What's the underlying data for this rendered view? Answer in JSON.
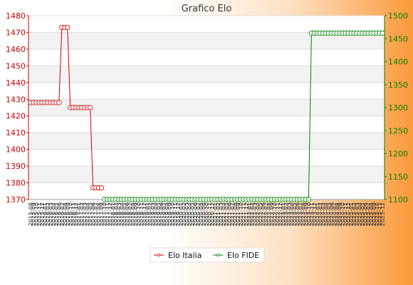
{
  "chart_data": {
    "type": "line",
    "title": "Grafico Elo",
    "xlabel": "",
    "ylabel": "",
    "grid": true,
    "legend_position": "bottom",
    "left_axis": {
      "ylim": [
        1370,
        1480
      ],
      "ticks": [
        1370,
        1380,
        1390,
        1400,
        1410,
        1420,
        1430,
        1440,
        1450,
        1460,
        1470,
        1480
      ],
      "color": "#cc0000"
    },
    "right_axis": {
      "ylim": [
        1100,
        1500
      ],
      "ticks": [
        1100,
        1150,
        1200,
        1250,
        1300,
        1350,
        1400,
        1450,
        1500
      ],
      "color": "#008000"
    },
    "x_tick_labels": [
      "2015-08",
      "2015-09",
      "2015-10",
      "2015-11",
      "2015-12",
      "2016-01",
      "2016-02",
      "2016-03",
      "2016-04",
      "2016-05",
      "2016-06",
      "2016-07",
      "2016-08",
      "2016-09",
      "2016-10",
      "2016-11",
      "2016-12",
      "2017-01",
      "2017-02",
      "2017-03",
      "2017-04",
      "2017-05",
      "2017-06",
      "2017-07",
      "2017-08",
      "2017-09",
      "2017-10",
      "2017-11",
      "2017-12",
      "2018-01",
      "2018-02",
      "2018-03",
      "2018-04",
      "2018-05",
      "2018-06",
      "2018-07",
      "2018-08",
      "2018-09",
      "2018-10",
      "2018-11",
      "2018-12",
      "2019-01",
      "2019-02",
      "2019-03",
      "2019-04",
      "2019-05",
      "2019-06",
      "2019-07",
      "2019-08",
      "2019-09",
      "2019-10",
      "2019-11",
      "2019-12",
      "2020-01",
      "2020-02",
      "2020-03",
      "2020-04",
      "2020-05",
      "2020-06",
      "2020-07",
      "2020-08",
      "2020-09",
      "2020-10",
      "2020-11",
      "2020-12",
      "2021-01",
      "2021-02",
      "2021-03",
      "2021-04",
      "2021-05",
      "2021-06",
      "2021-07",
      "2021-08",
      "2021-09",
      "2021-10",
      "2021-11",
      "2021-12",
      "2022-01",
      "2022-02",
      "2022-03",
      "2022-04",
      "2022-05",
      "2022-06",
      "2022-07",
      "2022-08",
      "2022-09",
      "2022-10",
      "2022-11",
      "2022-12",
      "2023-01",
      "2023-02",
      "2023-03",
      "2023-04",
      "2023-05",
      "2023-06",
      "2023-07",
      "2023-08",
      "2023-09",
      "2023-10",
      "2023-11",
      "2023-12",
      "2024-01",
      "2024-02",
      "2024-03",
      "2024-04",
      "2024-05",
      "2024-06",
      "2024-07",
      "2024-08",
      "2024-09",
      "2024-10",
      "2024-11",
      "2024-12",
      "2025-01",
      "2025-02",
      "2025-03",
      "2025-04",
      "2025-05",
      "2025-06",
      "2025-07",
      "2025-08",
      "2025-09",
      "2025-10",
      "2025-11",
      "2025-12"
    ],
    "series": [
      {
        "name": "Elo Italia",
        "axis": "left",
        "color": "#cc0000",
        "runs": [
          {
            "from": 0,
            "to": 10,
            "value": 1428
          },
          {
            "from": 11,
            "to": 13,
            "value": 1473
          },
          {
            "from": 14,
            "to": 21,
            "value": 1425
          },
          {
            "from": 22,
            "to": 25,
            "value": 1377
          }
        ]
      },
      {
        "name": "Elo FIDE",
        "axis": "right",
        "color": "#008000",
        "runs": [
          {
            "from": 26,
            "to": 98,
            "value": 1100
          },
          {
            "from": 99,
            "to": 124,
            "value": 1462
          }
        ]
      }
    ]
  }
}
